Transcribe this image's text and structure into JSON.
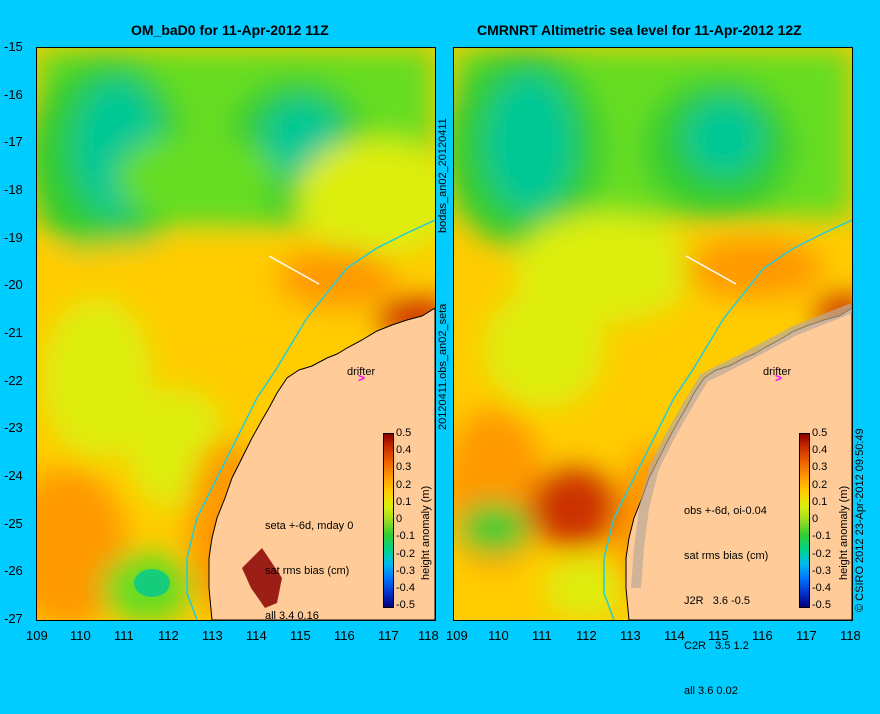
{
  "panels": [
    {
      "title": "OM_baD0 for 11-Apr-2012 11Z",
      "stats": [
        "seta +-6d, mday 0",
        "sat rms bias (cm)",
        "all 3.4 0.16"
      ],
      "drifter_label": "drifter"
    },
    {
      "title": "CMRNRT Altimetric sea level  for 11-Apr-2012 12Z",
      "stats": [
        "obs +-6d, oi-0.04",
        "sat rms bias (cm)",
        "J2R   3.6 -0.5",
        "C2R   3.5 1.2",
        "all 3.6 0.02"
      ],
      "drifter_label": "drifter"
    }
  ],
  "y_ticks": [
    "-15",
    "-16",
    "-17",
    "-18",
    "-19",
    "-20",
    "-21",
    "-22",
    "-23",
    "-24",
    "-25",
    "-26",
    "-27"
  ],
  "x_ticks": [
    "109",
    "110",
    "111",
    "112",
    "113",
    "114",
    "115",
    "116",
    "117",
    "118"
  ],
  "colorbar": {
    "title": "height anomaly (m)",
    "ticks": [
      "0.5",
      "0.4",
      "0.3",
      "0.2",
      "0.1",
      "0",
      "-0.1",
      "-0.2",
      "-0.3",
      "-0.4",
      "-0.5"
    ],
    "colors": [
      "#000080",
      "#0033cc",
      "#0077ff",
      "#00bbee",
      "#00d488",
      "#33cc33",
      "#99dd22",
      "#ddee11",
      "#ffcc00",
      "#ff9900",
      "#ee6600",
      "#cc3300",
      "#8b0000"
    ]
  },
  "side_labels": {
    "upper": "bodas_an02_20120411",
    "lower": "20120411.obs_an02_seta",
    "credit": "© CSIRO 2012   23-Apr-2012 09:50:49"
  },
  "colors": {
    "background": "#00ccff",
    "land": "#ffcc99",
    "drifter_arrow": "#ff00ff",
    "coast_outline": "#000000"
  }
}
